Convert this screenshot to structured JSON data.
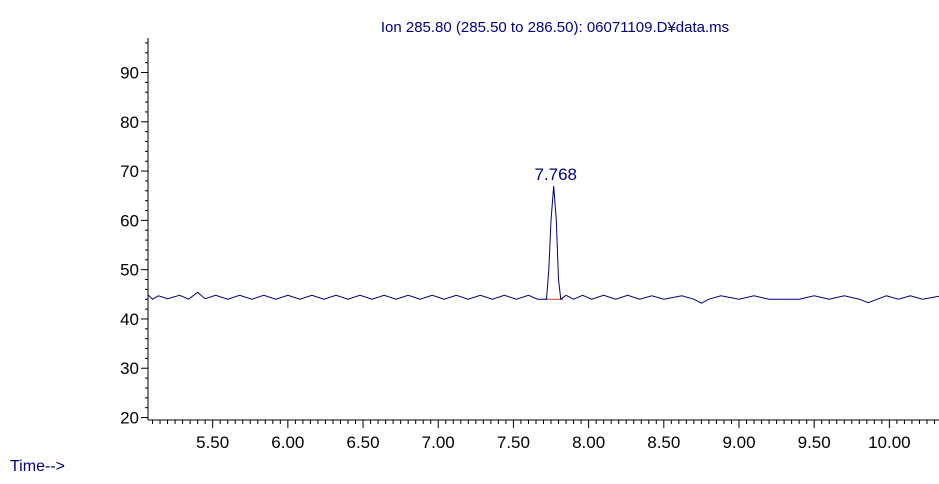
{
  "chart_data": {
    "type": "line",
    "title": "Ion 285.80 (285.50 to 286.50): 06071109.D¥data.ms",
    "xlabel": "Time-->",
    "ylabel": "",
    "xlim": [
      5.07,
      10.33
    ],
    "ylim": [
      19.5,
      97
    ],
    "x_ticks": [
      "5.50",
      "6.00",
      "6.50",
      "7.00",
      "7.50",
      "8.00",
      "8.50",
      "9.00",
      "9.50",
      "10.00"
    ],
    "y_ticks": [
      "20",
      "30",
      "40",
      "50",
      "60",
      "70",
      "80",
      "90"
    ],
    "grid": false,
    "series": [
      {
        "baseline": 44,
        "points": [
          [
            5.07,
            44.9
          ],
          [
            5.1,
            44.0
          ],
          [
            5.14,
            44.7
          ],
          [
            5.2,
            44.1
          ],
          [
            5.28,
            44.8
          ],
          [
            5.34,
            44.0
          ],
          [
            5.4,
            45.4
          ],
          [
            5.45,
            44.1
          ],
          [
            5.52,
            44.8
          ],
          [
            5.6,
            44.0
          ],
          [
            5.68,
            44.8
          ],
          [
            5.76,
            44.0
          ],
          [
            5.84,
            44.8
          ],
          [
            5.92,
            44.0
          ],
          [
            6.0,
            44.8
          ],
          [
            6.08,
            44.0
          ],
          [
            6.16,
            44.8
          ],
          [
            6.24,
            44.0
          ],
          [
            6.32,
            44.8
          ],
          [
            6.4,
            44.0
          ],
          [
            6.48,
            44.8
          ],
          [
            6.56,
            44.0
          ],
          [
            6.64,
            44.8
          ],
          [
            6.72,
            44.0
          ],
          [
            6.8,
            44.8
          ],
          [
            6.88,
            44.0
          ],
          [
            6.96,
            44.8
          ],
          [
            7.04,
            44.0
          ],
          [
            7.12,
            44.8
          ],
          [
            7.2,
            44.0
          ],
          [
            7.28,
            44.8
          ],
          [
            7.36,
            44.0
          ],
          [
            7.44,
            44.8
          ],
          [
            7.52,
            44.0
          ],
          [
            7.6,
            44.8
          ],
          [
            7.66,
            44.0
          ],
          [
            7.72,
            44.0
          ],
          [
            7.735,
            50.0
          ],
          [
            7.75,
            60.0
          ],
          [
            7.768,
            67.0
          ],
          [
            7.785,
            60.0
          ],
          [
            7.8,
            48.0
          ],
          [
            7.815,
            44.0
          ],
          [
            7.85,
            44.8
          ],
          [
            7.9,
            44.0
          ],
          [
            7.96,
            44.8
          ],
          [
            8.02,
            44.0
          ],
          [
            8.1,
            44.8
          ],
          [
            8.18,
            44.0
          ],
          [
            8.26,
            44.8
          ],
          [
            8.34,
            44.0
          ],
          [
            8.42,
            44.7
          ],
          [
            8.5,
            44.0
          ],
          [
            8.62,
            44.7
          ],
          [
            8.7,
            44.0
          ],
          [
            8.75,
            43.2
          ],
          [
            8.8,
            44.0
          ],
          [
            8.88,
            44.7
          ],
          [
            9.0,
            44.0
          ],
          [
            9.1,
            44.7
          ],
          [
            9.2,
            44.0
          ],
          [
            9.4,
            44.0
          ],
          [
            9.5,
            44.7
          ],
          [
            9.6,
            44.0
          ],
          [
            9.7,
            44.7
          ],
          [
            9.8,
            44.0
          ],
          [
            9.86,
            43.3
          ],
          [
            9.92,
            44.0
          ],
          [
            9.98,
            44.7
          ],
          [
            10.06,
            44.0
          ],
          [
            10.14,
            44.7
          ],
          [
            10.22,
            44.0
          ],
          [
            10.33,
            44.6
          ]
        ]
      }
    ],
    "annotations": [
      {
        "text": "7.768",
        "x": 7.768,
        "y": 67.0
      }
    ]
  }
}
